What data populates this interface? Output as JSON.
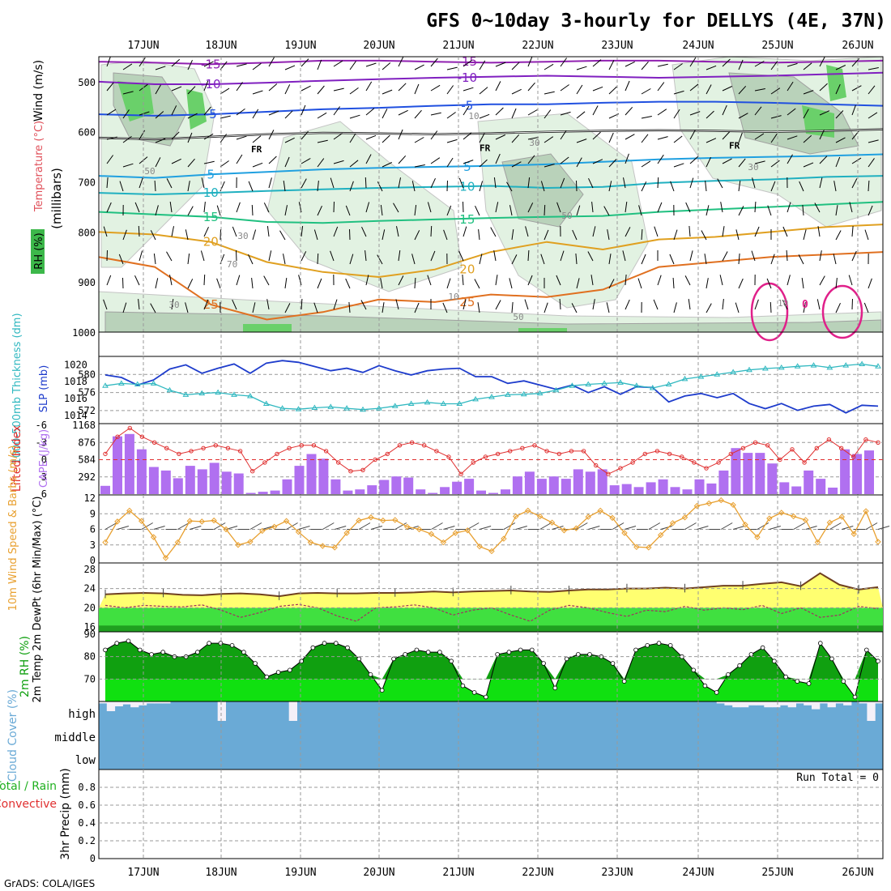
{
  "title": "GFS 0~10day 3-hourly for DELLYS (4E, 37N)",
  "footer": "GrADS: COLA/IGES",
  "colors": {
    "sounding_rh": "#3cb84a",
    "temperature_label": "#e0505a",
    "slp_line": "#1e3ccc",
    "thickness_line": "#30b8c0",
    "lifted_index": "#e03030",
    "cape_bar": "#b070f0",
    "wind_speed": "#e8a030",
    "temp_yellow": "#ffff70",
    "dewpoint_green": "#40e040",
    "rh_dark": "#10a010",
    "rh_light": "#10e010",
    "cloud": "#6aaad6",
    "precip_total": "#20b020",
    "precip_convective": "#e03030"
  },
  "chart_data": [
    {
      "panel": "upper_air",
      "type": "contour",
      "ylabel": "(millibars)",
      "side_labels": [
        "Wind (m/s)",
        "Temperature (°C)",
        "RH (%)"
      ],
      "yticks": [
        500,
        600,
        700,
        800,
        900,
        1000
      ],
      "ylim": [
        450,
        1000
      ],
      "x_days": [
        "17JUN",
        "18JUN",
        "19JUN",
        "20JUN",
        "21JUN",
        "22JUN",
        "23JUN",
        "24JUN",
        "25JUN",
        "26JUN"
      ],
      "freezing_label": "FR",
      "contour_labels": [
        "-15",
        "-10",
        "-5",
        "5",
        "10",
        "15",
        "20",
        "25",
        "30",
        "50",
        "70"
      ],
      "isotherms": [
        {
          "value": -15,
          "color": "#9020b0",
          "levels": [
            460,
            462,
            465,
            462,
            458,
            458,
            460,
            462,
            460,
            458,
            458,
            460,
            462,
            460,
            458
          ]
        },
        {
          "value": -10,
          "color": "#8020c0",
          "levels": [
            500,
            505,
            505,
            502,
            498,
            495,
            492,
            490,
            488,
            490,
            492,
            490,
            488,
            485,
            482
          ]
        },
        {
          "value": -5,
          "color": "#2050e0",
          "levels": [
            565,
            568,
            565,
            560,
            555,
            552,
            548,
            545,
            545,
            542,
            540,
            540,
            542,
            545,
            548
          ]
        },
        {
          "value": 0,
          "color": "#202020",
          "levels": [
            612,
            615,
            610,
            605,
            602,
            603,
            605,
            603,
            600,
            598,
            597,
            598,
            600,
            598,
            595
          ]
        },
        {
          "value": 5,
          "color": "#20a0e0",
          "levels": [
            688,
            692,
            685,
            680,
            675,
            672,
            670,
            668,
            665,
            660,
            655,
            652,
            650,
            648,
            645
          ]
        },
        {
          "value": 10,
          "color": "#20b0c0",
          "levels": [
            722,
            725,
            722,
            718,
            715,
            712,
            710,
            708,
            712,
            710,
            702,
            698,
            695,
            690,
            688
          ]
        },
        {
          "value": 15,
          "color": "#20c080",
          "levels": [
            760,
            765,
            770,
            780,
            782,
            778,
            775,
            772,
            770,
            768,
            760,
            755,
            750,
            745,
            740
          ]
        },
        {
          "value": 20,
          "color": "#e0a020",
          "levels": [
            800,
            805,
            820,
            860,
            880,
            890,
            875,
            840,
            820,
            835,
            815,
            810,
            800,
            790,
            785
          ]
        },
        {
          "value": 25,
          "color": "#e07020",
          "levels": [
            850,
            870,
            945,
            975,
            960,
            935,
            940,
            925,
            930,
            915,
            870,
            860,
            850,
            845,
            840
          ]
        }
      ]
    },
    {
      "panel": "thickness_slp",
      "type": "line",
      "ylabel_left": "1000-500mb Thickness (dm)",
      "ylabel_right": "SLP (mb)",
      "left_ticks": [
        572,
        576,
        580
      ],
      "right_ticks": [
        1014,
        1016,
        1018,
        1020
      ],
      "series": [
        {
          "name": "Thickness",
          "values": [
            577.5,
            578,
            577.8,
            578,
            576.5,
            575.5,
            575.8,
            576,
            575.5,
            575.2,
            573.5,
            572.5,
            572.3,
            572.6,
            572.8,
            572.5,
            572.2,
            572.5,
            573,
            573.5,
            573.8,
            573.5,
            573.5,
            574.5,
            575,
            575.5,
            575.6,
            575.8,
            576.5,
            577.5,
            577.8,
            578,
            578.2,
            577.5,
            577,
            577.8,
            579,
            579.5,
            580,
            580.5,
            581,
            581.3,
            581.5,
            581.8,
            582,
            581.5,
            582,
            582.3,
            581.8
          ]
        },
        {
          "name": "SLP",
          "values": [
            1018.8,
            1018.5,
            1017.6,
            1018.2,
            1019.5,
            1020,
            1019,
            1019.6,
            1020.1,
            1019,
            1020.2,
            1020.5,
            1020.3,
            1019.8,
            1019.3,
            1019.6,
            1019.1,
            1019.9,
            1019.3,
            1018.8,
            1019.3,
            1019.5,
            1019.6,
            1018.6,
            1018.6,
            1017.8,
            1018.1,
            1017.6,
            1017.1,
            1017.6,
            1016.7,
            1017.4,
            1016.5,
            1017.4,
            1017.3,
            1015.6,
            1016.3,
            1016.6,
            1016.1,
            1016.6,
            1015.4,
            1014.8,
            1015.4,
            1014.6,
            1015.1,
            1015.3,
            1014.3,
            1015.2,
            1015.1
          ]
        }
      ]
    },
    {
      "panel": "cape_li",
      "type": "bar",
      "ylabel_left": "Lifted Index",
      "ylabel_right": "CAPE (J/kg)",
      "left_ticks": [
        -6,
        -3,
        0,
        3,
        6
      ],
      "right_ticks": [
        292,
        584,
        876,
        1168
      ],
      "series": [
        {
          "name": "CAPE",
          "values": [
            140,
            980,
            1020,
            760,
            460,
            400,
            270,
            480,
            420,
            530,
            380,
            350,
            20,
            40,
            60,
            250,
            480,
            680,
            600,
            250,
            60,
            80,
            150,
            240,
            300,
            280,
            80,
            20,
            120,
            210,
            260,
            60,
            20,
            80,
            300,
            380,
            260,
            300,
            260,
            420,
            380,
            420,
            150,
            170,
            120,
            200,
            250,
            120,
            80,
            250,
            180,
            400,
            780,
            700,
            700,
            520,
            200,
            130,
            400,
            260,
            110,
            760,
            680,
            740
          ]
        },
        {
          "name": "Lifted Index",
          "values": [
            -1,
            -4,
            -5.5,
            -4,
            -3,
            -2,
            -1,
            -1.5,
            -2,
            -2.5,
            -2,
            -1.5,
            2,
            0.5,
            -1,
            -2,
            -2.5,
            -2.5,
            -1.5,
            0.5,
            2,
            1.8,
            0,
            -1,
            -2.5,
            -3,
            -2.5,
            -1.5,
            -0.5,
            2.5,
            0.5,
            -0.5,
            -1,
            -1.5,
            -2,
            -2.5,
            -1.5,
            -1,
            -1.5,
            -1.5,
            1,
            2.5,
            1.5,
            0.5,
            -1,
            -1.5,
            -1,
            -0.5,
            0.5,
            1.5,
            0.5,
            -1,
            -2,
            -3,
            -2.5,
            0,
            -1.8,
            0.5,
            -2,
            -3.5,
            -2,
            -0.5,
            -3.5,
            -3
          ]
        }
      ]
    },
    {
      "panel": "wind10m",
      "type": "line",
      "ylabel": "10m Wind Speed & Barbs (m/s)",
      "yticks": [
        0,
        3,
        6,
        9,
        12
      ],
      "ylim": [
        0,
        12
      ],
      "values": [
        3.5,
        7.5,
        9.6,
        7.6,
        4.5,
        0.5,
        3.5,
        7.6,
        7.5,
        7.7,
        6,
        3,
        3.6,
        5.7,
        6.5,
        7.6,
        5.5,
        3.5,
        2.8,
        2.5,
        5.3,
        7.7,
        8.3,
        7.7,
        7.8,
        6.5,
        6,
        5.1,
        3.5,
        5.3,
        5.8,
        2.7,
        1.8,
        4.2,
        8.5,
        9.6,
        8.5,
        7.3,
        5.8,
        6.2,
        8.4,
        9.6,
        8.2,
        5.3,
        2.6,
        2.5,
        4.9,
        7.2,
        8.3,
        10.5,
        11,
        11.6,
        10.7,
        6.9,
        4.5,
        8.1,
        9.2,
        8.5,
        7.8,
        3.5,
        7.3,
        8.4,
        5.1,
        9.5,
        3.6
      ]
    },
    {
      "panel": "temp_dewpoint",
      "type": "area",
      "ylabel": "2m Temp 2m DewPt (6hr Min/Max) (°C)",
      "yticks": [
        16,
        20,
        24,
        28
      ],
      "ylim": [
        15,
        29
      ],
      "series": [
        {
          "name": "2m Temp",
          "values": [
            22.8,
            23,
            23.1,
            23,
            22.7,
            22.6,
            22.9,
            23,
            22.8,
            22.4,
            23,
            23.1,
            23,
            23,
            23.1,
            23.1,
            23.2,
            23.4,
            23.2,
            23.4,
            23.5,
            23.6,
            23.4,
            23.3,
            23.6,
            23.8,
            23.8,
            24,
            24,
            24.2,
            24,
            24.3,
            24.6,
            24.6,
            25,
            25.3,
            24.5,
            27.2,
            24.8,
            23.8,
            24.3
          ]
        },
        {
          "name": "2m DewPt",
          "values": [
            20.5,
            20,
            20.5,
            20.3,
            20.2,
            20.6,
            19.5,
            18,
            19,
            20.3,
            20.7,
            20,
            18.3,
            17.2,
            20,
            20.2,
            20.6,
            20,
            18.5,
            19.5,
            20,
            18.5,
            17.2,
            19.5,
            20.5,
            20,
            19,
            18.2,
            19.5,
            19.2,
            20.3,
            19.5,
            20,
            19.6,
            20.5,
            18.8,
            20,
            18,
            18.5,
            20.3,
            19.8
          ]
        }
      ]
    },
    {
      "panel": "rh2m",
      "type": "area",
      "ylabel": "2m RH (%)",
      "yticks": [
        70,
        80,
        90
      ],
      "ylim": [
        60,
        90
      ],
      "values": [
        83,
        86,
        87,
        83,
        81,
        82,
        80,
        80,
        82,
        86,
        86,
        85,
        82,
        77,
        71,
        73,
        74,
        78,
        84,
        86,
        86,
        84,
        79,
        72,
        65,
        79,
        81,
        83,
        82,
        82,
        78,
        67,
        64,
        62,
        81,
        82,
        83,
        83,
        77,
        66,
        79,
        81,
        81,
        80,
        77,
        69,
        83,
        85,
        86,
        85,
        80,
        74,
        67,
        64,
        72,
        76,
        81,
        84,
        78,
        71,
        69,
        68,
        86,
        79,
        69,
        62,
        83,
        78
      ]
    },
    {
      "panel": "cloud_cover",
      "type": "heatmap",
      "ylabel": "Cloud Cover (%)",
      "levels": [
        "high",
        "middle",
        "low"
      ],
      "high_cover": [
        90,
        50,
        75,
        85,
        70,
        80,
        90,
        90,
        90,
        100,
        100,
        100,
        100,
        100,
        100,
        0,
        100,
        100,
        100,
        100,
        100,
        100,
        100,
        100,
        0,
        100,
        100,
        100,
        100,
        100,
        100,
        100,
        100,
        100,
        100,
        100,
        100,
        100,
        100,
        100,
        100,
        100,
        100,
        100,
        100,
        100,
        100,
        100,
        100,
        100,
        100,
        100,
        100,
        100,
        100,
        100,
        100,
        100,
        100,
        100,
        100,
        100,
        100,
        100,
        100,
        100,
        100,
        100,
        100,
        100,
        100,
        100,
        100,
        100,
        100,
        100,
        100,
        100,
        90,
        80,
        70,
        70,
        80,
        80,
        70,
        70,
        80,
        70,
        90,
        80,
        60,
        90,
        70,
        90,
        80,
        100,
        90,
        0,
        90
      ]
    },
    {
      "panel": "precip",
      "type": "bar",
      "ylabel": "3hr Precip (mm)",
      "legend": [
        "Total / Rain",
        "Convective"
      ],
      "yticks": [
        0,
        0.2,
        0.4,
        0.6,
        0.8
      ],
      "ylim": [
        0,
        1
      ],
      "run_total_label": "Run Total = 0",
      "values": []
    }
  ]
}
